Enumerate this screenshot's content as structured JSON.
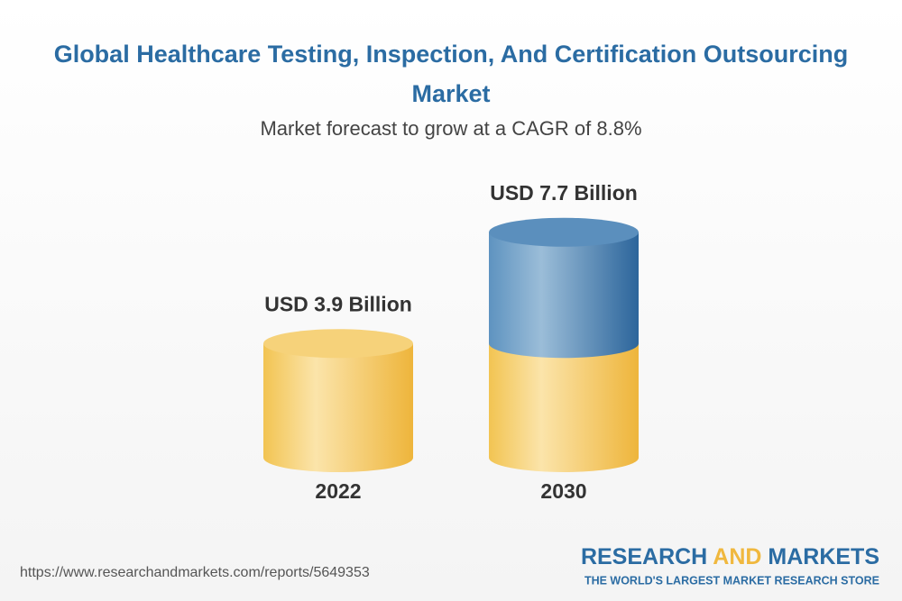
{
  "chart_data": {
    "type": "cylinder",
    "title": "Global Healthcare Testing, Inspection, And Certification Outsourcing Market",
    "subtitle": "Market forecast to grow at a CAGR of 8.8%",
    "categories": [
      "2022",
      "2030"
    ],
    "values": [
      3.9,
      7.7
    ],
    "value_labels": [
      "USD 3.9 Billion",
      "USD 7.7 Billion"
    ],
    "color": "#f3c75a",
    "growth_color": "#3f7bb0"
  },
  "footer": {
    "url": "https://www.researchandmarkets.com/reports/5649353",
    "brand_parts": [
      "RESEARCH",
      "AND",
      "MARKETS"
    ],
    "tagline": "THE WORLD'S LARGEST MARKET RESEARCH STORE"
  }
}
